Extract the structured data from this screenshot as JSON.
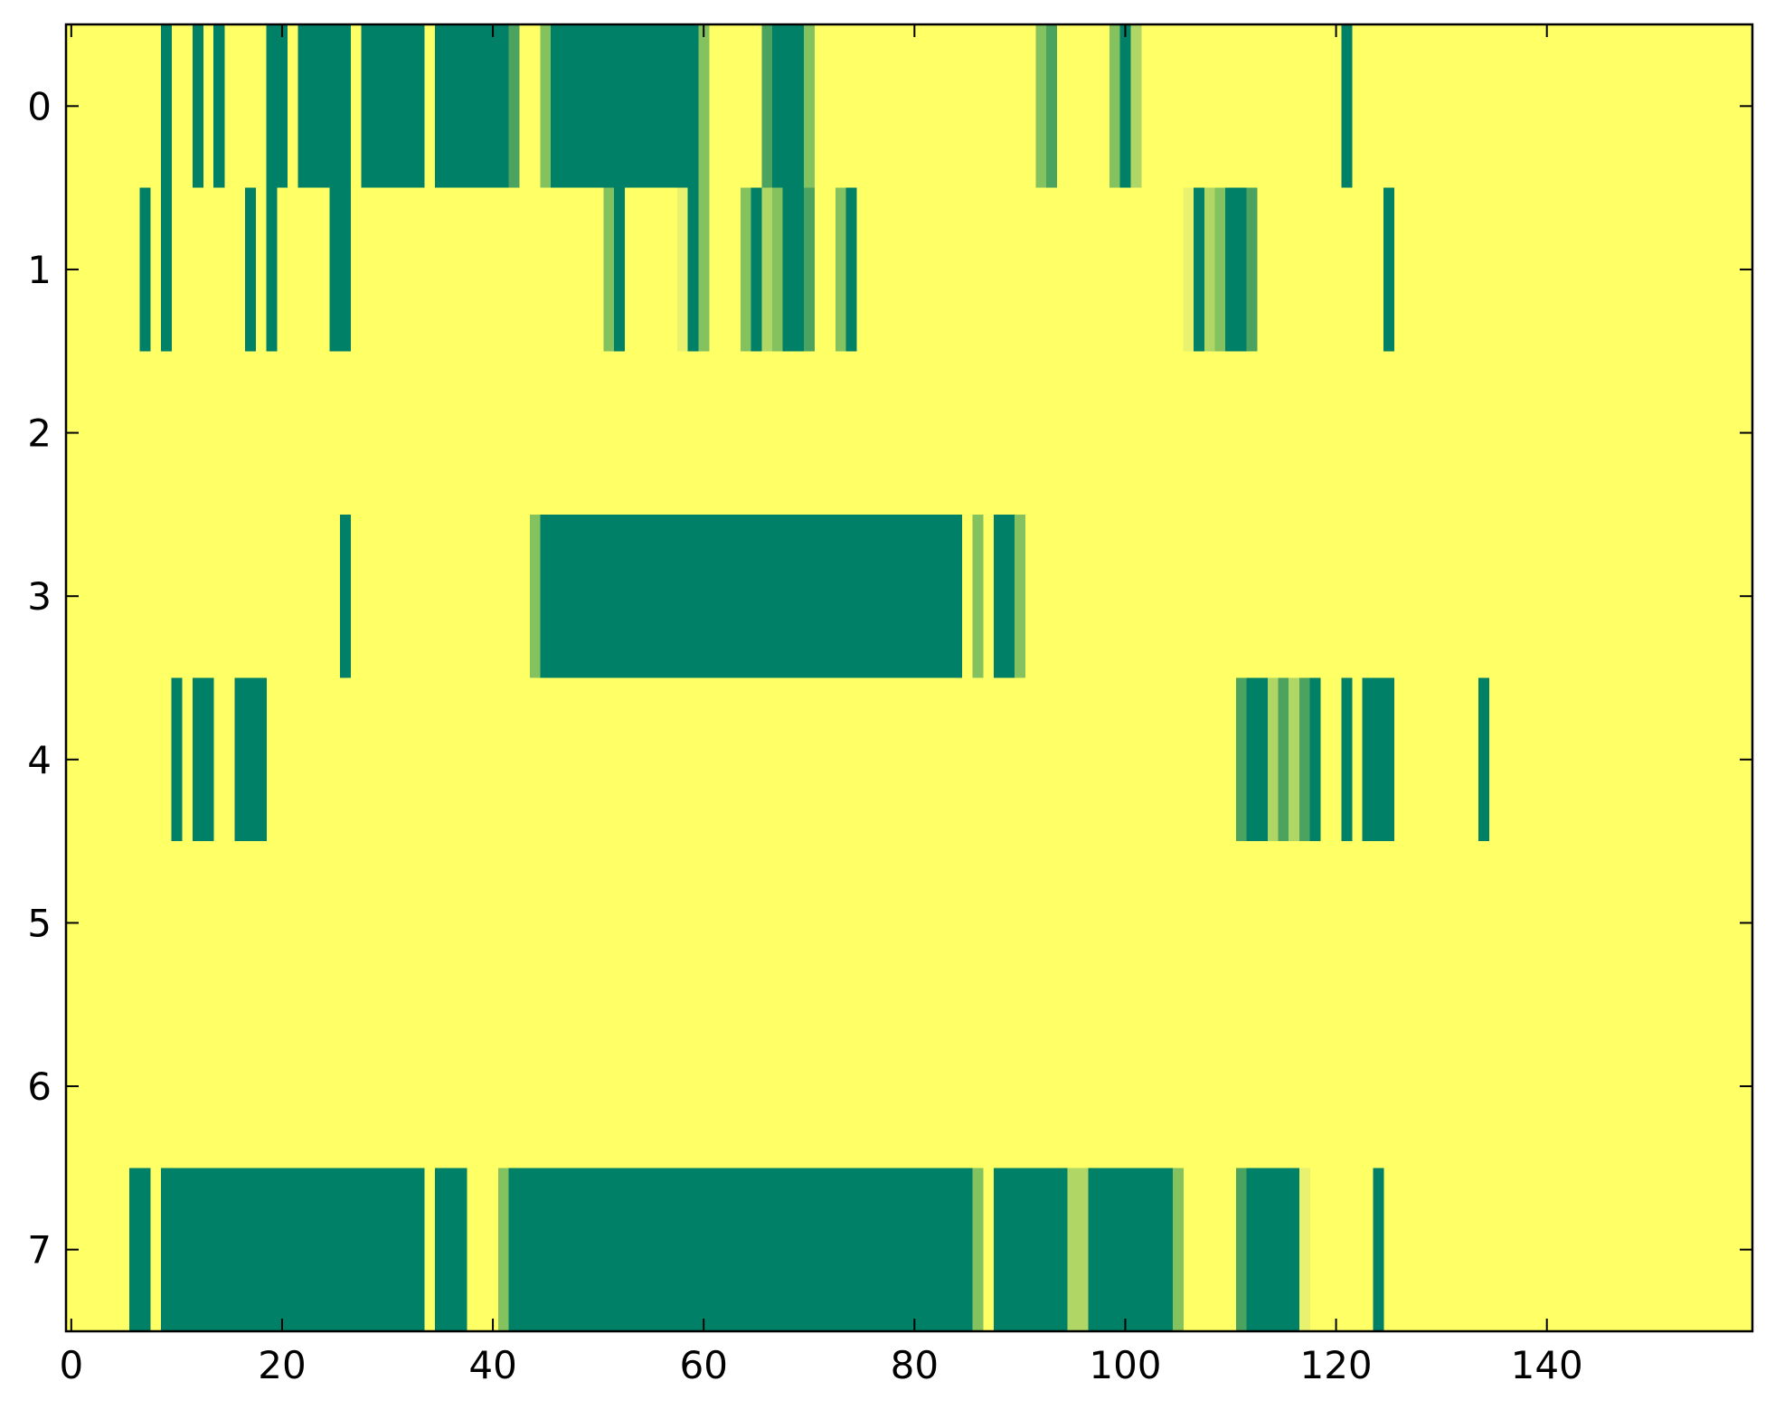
{
  "chart_data": {
    "type": "heatmap",
    "title": "",
    "xlabel": "",
    "ylabel": "",
    "xlim": [
      -0.5,
      159.5
    ],
    "ylim": [
      -0.5,
      7.5
    ],
    "x_ticks": [
      0,
      20,
      40,
      60,
      80,
      100,
      120,
      140
    ],
    "y_ticks": [
      0,
      1,
      2,
      3,
      4,
      5,
      6,
      7
    ],
    "y_inverted": true,
    "colormap": "summer_r",
    "background_value": 0,
    "colors": {
      "0": "#ffff66",
      "0.2": "#e8f26e",
      "0.4": "#b0d765",
      "0.6": "#84c25f",
      "0.8": "#4ba35f",
      "1": "#008066",
      "frame": "#000000"
    },
    "rows": [
      {
        "row": 0,
        "cells": [
          {
            "x": 9,
            "w": 1,
            "v": 1
          },
          {
            "x": 12,
            "w": 1,
            "v": 1
          },
          {
            "x": 14,
            "w": 1,
            "v": 1
          },
          {
            "x": 19,
            "w": 2,
            "v": 1
          },
          {
            "x": 22,
            "w": 5,
            "v": 1
          },
          {
            "x": 28,
            "w": 6,
            "v": 1
          },
          {
            "x": 35,
            "w": 7,
            "v": 1
          },
          {
            "x": 42,
            "w": 1,
            "v": 0.8
          },
          {
            "x": 45,
            "w": 1,
            "v": 0.6
          },
          {
            "x": 46,
            "w": 14,
            "v": 1
          },
          {
            "x": 60,
            "w": 1,
            "v": 0.6
          },
          {
            "x": 66,
            "w": 1,
            "v": 0.8
          },
          {
            "x": 67,
            "w": 3,
            "v": 1
          },
          {
            "x": 70,
            "w": 1,
            "v": 0.6
          },
          {
            "x": 92,
            "w": 1,
            "v": 0.6
          },
          {
            "x": 93,
            "w": 1,
            "v": 0.8
          },
          {
            "x": 99,
            "w": 1,
            "v": 0.6
          },
          {
            "x": 100,
            "w": 1,
            "v": 1
          },
          {
            "x": 101,
            "w": 1,
            "v": 0.4
          },
          {
            "x": 121,
            "w": 1,
            "v": 1
          }
        ]
      },
      {
        "row": 1,
        "cells": [
          {
            "x": 7,
            "w": 1,
            "v": 1
          },
          {
            "x": 9,
            "w": 1,
            "v": 1
          },
          {
            "x": 17,
            "w": 1,
            "v": 1
          },
          {
            "x": 19,
            "w": 1,
            "v": 1
          },
          {
            "x": 25,
            "w": 2,
            "v": 1
          },
          {
            "x": 51,
            "w": 1,
            "v": 0.6
          },
          {
            "x": 52,
            "w": 1,
            "v": 1
          },
          {
            "x": 58,
            "w": 1,
            "v": 0.2
          },
          {
            "x": 59,
            "w": 1,
            "v": 1
          },
          {
            "x": 60,
            "w": 1,
            "v": 0.6
          },
          {
            "x": 64,
            "w": 1,
            "v": 0.6
          },
          {
            "x": 65,
            "w": 1,
            "v": 1
          },
          {
            "x": 66,
            "w": 1,
            "v": 0.4
          },
          {
            "x": 67,
            "w": 1,
            "v": 0.6
          },
          {
            "x": 68,
            "w": 2,
            "v": 1
          },
          {
            "x": 70,
            "w": 1,
            "v": 0.8
          },
          {
            "x": 73,
            "w": 1,
            "v": 0.6
          },
          {
            "x": 74,
            "w": 1,
            "v": 1
          },
          {
            "x": 106,
            "w": 1,
            "v": 0.2
          },
          {
            "x": 107,
            "w": 1,
            "v": 1
          },
          {
            "x": 108,
            "w": 1,
            "v": 0.4
          },
          {
            "x": 109,
            "w": 1,
            "v": 0.6
          },
          {
            "x": 110,
            "w": 2,
            "v": 1
          },
          {
            "x": 112,
            "w": 1,
            "v": 0.8
          },
          {
            "x": 125,
            "w": 1,
            "v": 1
          }
        ]
      },
      {
        "row": 2,
        "cells": []
      },
      {
        "row": 3,
        "cells": [
          {
            "x": 26,
            "w": 1,
            "v": 1
          },
          {
            "x": 44,
            "w": 1,
            "v": 0.6
          },
          {
            "x": 45,
            "w": 40,
            "v": 1
          },
          {
            "x": 86,
            "w": 1,
            "v": 0.6
          },
          {
            "x": 88,
            "w": 2,
            "v": 1
          },
          {
            "x": 90,
            "w": 1,
            "v": 0.6
          }
        ]
      },
      {
        "row": 4,
        "cells": [
          {
            "x": 10,
            "w": 1,
            "v": 1
          },
          {
            "x": 12,
            "w": 2,
            "v": 1
          },
          {
            "x": 16,
            "w": 3,
            "v": 1
          },
          {
            "x": 111,
            "w": 1,
            "v": 0.8
          },
          {
            "x": 112,
            "w": 2,
            "v": 1
          },
          {
            "x": 114,
            "w": 1,
            "v": 0.4
          },
          {
            "x": 115,
            "w": 1,
            "v": 0.8
          },
          {
            "x": 116,
            "w": 1,
            "v": 0.4
          },
          {
            "x": 117,
            "w": 1,
            "v": 0.8
          },
          {
            "x": 118,
            "w": 1,
            "v": 1
          },
          {
            "x": 121,
            "w": 1,
            "v": 1
          },
          {
            "x": 123,
            "w": 3,
            "v": 1
          },
          {
            "x": 134,
            "w": 1,
            "v": 1
          }
        ]
      },
      {
        "row": 5,
        "cells": []
      },
      {
        "row": 6,
        "cells": []
      },
      {
        "row": 7,
        "cells": [
          {
            "x": 6,
            "w": 2,
            "v": 1
          },
          {
            "x": 9,
            "w": 25,
            "v": 1
          },
          {
            "x": 35,
            "w": 3,
            "v": 1
          },
          {
            "x": 41,
            "w": 1,
            "v": 0.6
          },
          {
            "x": 42,
            "w": 44,
            "v": 1
          },
          {
            "x": 86,
            "w": 1,
            "v": 0.6
          },
          {
            "x": 88,
            "w": 7,
            "v": 1
          },
          {
            "x": 95,
            "w": 2,
            "v": 0.4
          },
          {
            "x": 97,
            "w": 8,
            "v": 1
          },
          {
            "x": 105,
            "w": 1,
            "v": 0.6
          },
          {
            "x": 111,
            "w": 1,
            "v": 0.8
          },
          {
            "x": 112,
            "w": 5,
            "v": 1
          },
          {
            "x": 117,
            "w": 1,
            "v": 0.2
          },
          {
            "x": 124,
            "w": 1,
            "v": 1
          }
        ]
      }
    ]
  }
}
